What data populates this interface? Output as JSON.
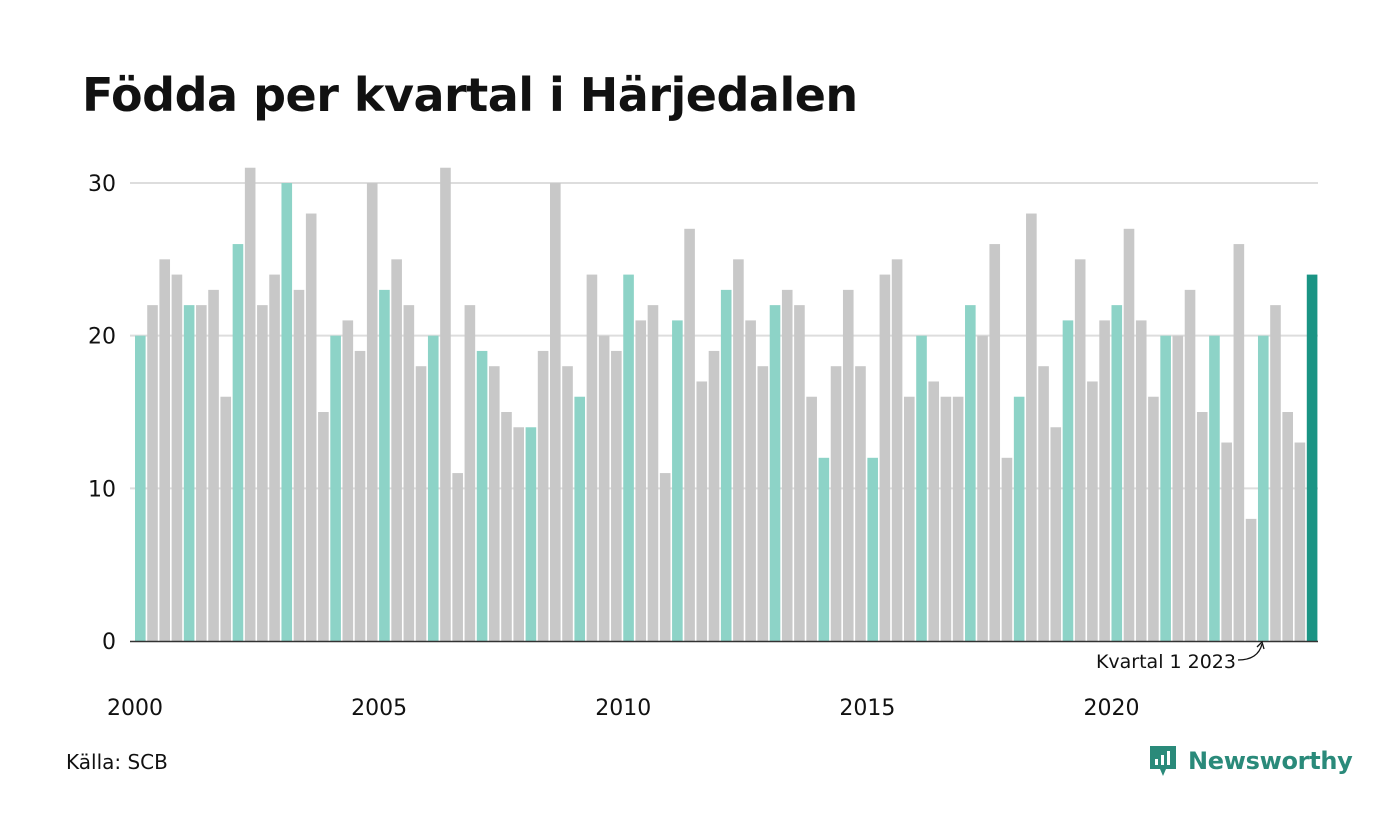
{
  "chart_data": {
    "type": "bar",
    "title": "Födda per kvartal i Härjedalen",
    "xlabel": "",
    "ylabel": "",
    "ylim": [
      0,
      30
    ],
    "yticks": [
      0,
      10,
      20,
      30
    ],
    "xticks": [
      "2000",
      "2005",
      "2010",
      "2015",
      "2020"
    ],
    "grid": true,
    "legend": "none",
    "start_year": 2000,
    "values": [
      20,
      22,
      25,
      24,
      22,
      22,
      23,
      16,
      26,
      31,
      22,
      24,
      30,
      23,
      28,
      15,
      20,
      21,
      19,
      30,
      23,
      25,
      22,
      18,
      20,
      31,
      11,
      22,
      19,
      18,
      15,
      14,
      14,
      19,
      30,
      18,
      16,
      24,
      20,
      19,
      24,
      21,
      22,
      11,
      21,
      27,
      17,
      19,
      23,
      25,
      21,
      18,
      22,
      23,
      22,
      16,
      12,
      18,
      23,
      18,
      12,
      24,
      25,
      16,
      20,
      17,
      16,
      16,
      22,
      20,
      26,
      12,
      16,
      28,
      18,
      14,
      21,
      25,
      17,
      21,
      22,
      27,
      21,
      16,
      20,
      20,
      23,
      15,
      20,
      13,
      26,
      8,
      20,
      22,
      15,
      13,
      24
    ],
    "annotation": {
      "text": "Kvartal 1 2023",
      "index": 92
    },
    "colors": {
      "q1": "#8dd3c7",
      "other": "#c8c8c8",
      "latest": "#1a9484",
      "grid": "#dddddd",
      "axis": "#333333"
    }
  },
  "footer": {
    "source": "Källa: SCB",
    "brand": "Newsworthy"
  }
}
